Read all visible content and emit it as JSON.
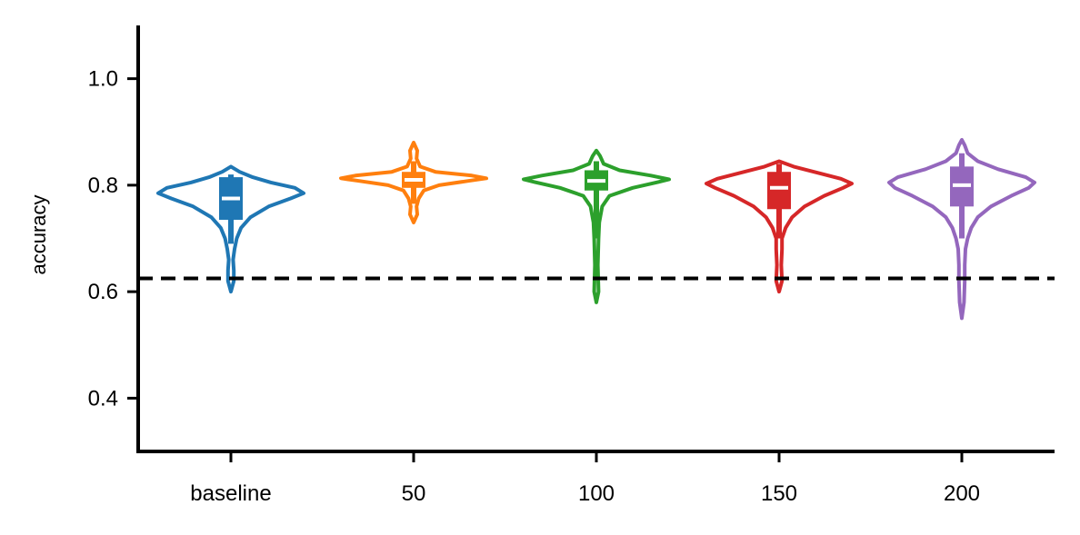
{
  "chart_data": {
    "type": "violin",
    "ylabel": "accuracy",
    "ylim": [
      0.3,
      1.1
    ],
    "yticks": [
      0.4,
      0.6,
      0.8,
      1.0
    ],
    "ytick_labels": [
      "0.4",
      "0.6",
      "0.8",
      "1.0"
    ],
    "categories": [
      "baseline",
      "50",
      "100",
      "150",
      "200"
    ],
    "reference_line": {
      "y": 0.625,
      "style": "dashed",
      "color": "#000000"
    },
    "series": [
      {
        "color": "#1f77b4",
        "min": 0.6,
        "max": 0.835,
        "q1": 0.735,
        "median": 0.775,
        "q3": 0.815,
        "whisker_low": 0.69,
        "whisker_high": 0.82,
        "profile": [
          [
            0.6,
            0.0
          ],
          [
            0.62,
            0.04
          ],
          [
            0.64,
            0.04
          ],
          [
            0.66,
            0.03
          ],
          [
            0.68,
            0.05
          ],
          [
            0.7,
            0.08
          ],
          [
            0.72,
            0.14
          ],
          [
            0.74,
            0.27
          ],
          [
            0.76,
            0.52
          ],
          [
            0.775,
            0.82
          ],
          [
            0.785,
            1.0
          ],
          [
            0.795,
            0.88
          ],
          [
            0.805,
            0.55
          ],
          [
            0.815,
            0.3
          ],
          [
            0.825,
            0.12
          ],
          [
            0.835,
            0.0
          ]
        ]
      },
      {
        "color": "#ff7f0e",
        "min": 0.73,
        "max": 0.88,
        "q1": 0.795,
        "median": 0.81,
        "q3": 0.825,
        "whisker_low": 0.765,
        "whisker_high": 0.845,
        "profile": [
          [
            0.73,
            0.0
          ],
          [
            0.745,
            0.05
          ],
          [
            0.76,
            0.04
          ],
          [
            0.775,
            0.07
          ],
          [
            0.79,
            0.14
          ],
          [
            0.8,
            0.35
          ],
          [
            0.808,
            0.75
          ],
          [
            0.813,
            1.0
          ],
          [
            0.818,
            0.8
          ],
          [
            0.825,
            0.3
          ],
          [
            0.835,
            0.09
          ],
          [
            0.85,
            0.04
          ],
          [
            0.865,
            0.05
          ],
          [
            0.88,
            0.0
          ]
        ]
      },
      {
        "color": "#2ca02c",
        "min": 0.58,
        "max": 0.865,
        "q1": 0.79,
        "median": 0.808,
        "q3": 0.828,
        "whisker_low": 0.7,
        "whisker_high": 0.845,
        "profile": [
          [
            0.58,
            0.0
          ],
          [
            0.6,
            0.03
          ],
          [
            0.65,
            0.02
          ],
          [
            0.7,
            0.03
          ],
          [
            0.73,
            0.04
          ],
          [
            0.76,
            0.08
          ],
          [
            0.78,
            0.18
          ],
          [
            0.795,
            0.5
          ],
          [
            0.806,
            0.85
          ],
          [
            0.811,
            1.0
          ],
          [
            0.818,
            0.75
          ],
          [
            0.828,
            0.32
          ],
          [
            0.84,
            0.1
          ],
          [
            0.855,
            0.05
          ],
          [
            0.865,
            0.0
          ]
        ]
      },
      {
        "color": "#d62728",
        "min": 0.6,
        "max": 0.845,
        "q1": 0.755,
        "median": 0.795,
        "q3": 0.825,
        "whisker_low": 0.7,
        "whisker_high": 0.84,
        "profile": [
          [
            0.6,
            0.0
          ],
          [
            0.62,
            0.04
          ],
          [
            0.65,
            0.03
          ],
          [
            0.68,
            0.04
          ],
          [
            0.7,
            0.04
          ],
          [
            0.72,
            0.09
          ],
          [
            0.74,
            0.18
          ],
          [
            0.76,
            0.35
          ],
          [
            0.78,
            0.62
          ],
          [
            0.795,
            0.88
          ],
          [
            0.803,
            1.0
          ],
          [
            0.812,
            0.85
          ],
          [
            0.825,
            0.48
          ],
          [
            0.835,
            0.2
          ],
          [
            0.845,
            0.0
          ]
        ]
      },
      {
        "color": "#9467bd",
        "min": 0.55,
        "max": 0.885,
        "q1": 0.76,
        "median": 0.8,
        "q3": 0.835,
        "whisker_low": 0.7,
        "whisker_high": 0.86,
        "profile": [
          [
            0.55,
            0.0
          ],
          [
            0.58,
            0.03
          ],
          [
            0.62,
            0.04
          ],
          [
            0.65,
            0.04
          ],
          [
            0.68,
            0.05
          ],
          [
            0.7,
            0.08
          ],
          [
            0.72,
            0.13
          ],
          [
            0.74,
            0.22
          ],
          [
            0.76,
            0.4
          ],
          [
            0.78,
            0.68
          ],
          [
            0.795,
            0.92
          ],
          [
            0.805,
            1.0
          ],
          [
            0.815,
            0.88
          ],
          [
            0.83,
            0.5
          ],
          [
            0.845,
            0.22
          ],
          [
            0.86,
            0.08
          ],
          [
            0.875,
            0.04
          ],
          [
            0.885,
            0.0
          ]
        ]
      }
    ]
  }
}
